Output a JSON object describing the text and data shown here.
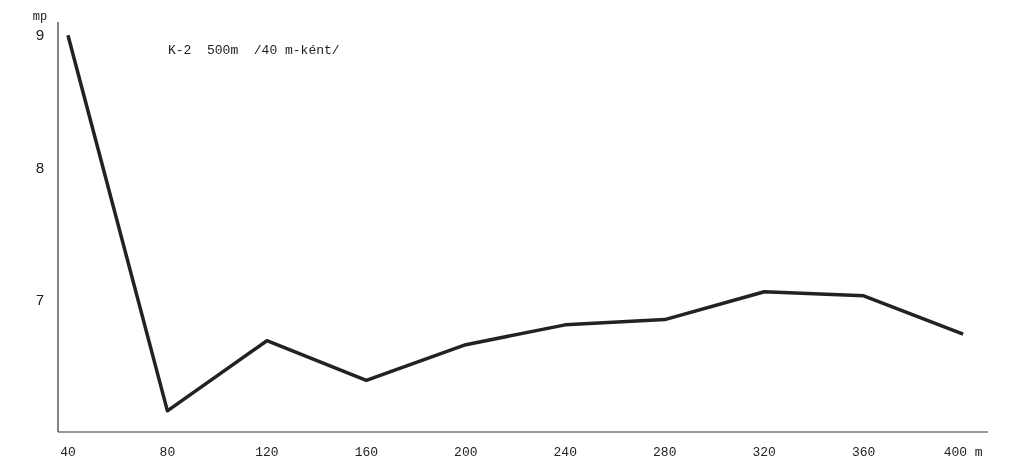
{
  "chart_data": {
    "type": "line",
    "title": "K-2  500m  /40 m-ként/",
    "ylabel": "mp",
    "x": [
      40,
      80,
      120,
      160,
      200,
      240,
      280,
      320,
      360,
      400
    ],
    "series": [
      {
        "color": "#222222",
        "values": [
          9.0,
          6.16,
          6.69,
          6.39,
          6.66,
          6.81,
          6.85,
          7.06,
          7.03,
          6.74
        ]
      }
    ],
    "xlim": [
      36,
      410
    ],
    "ylim": [
      6,
      9.1
    ],
    "xticks": [
      40,
      80,
      120,
      160,
      200,
      240,
      280,
      320,
      360,
      {
        "value": 400,
        "label": "400 m"
      }
    ],
    "yticks": [
      7,
      8,
      9
    ],
    "grid": false,
    "marker": "none",
    "line_style": "solid"
  }
}
